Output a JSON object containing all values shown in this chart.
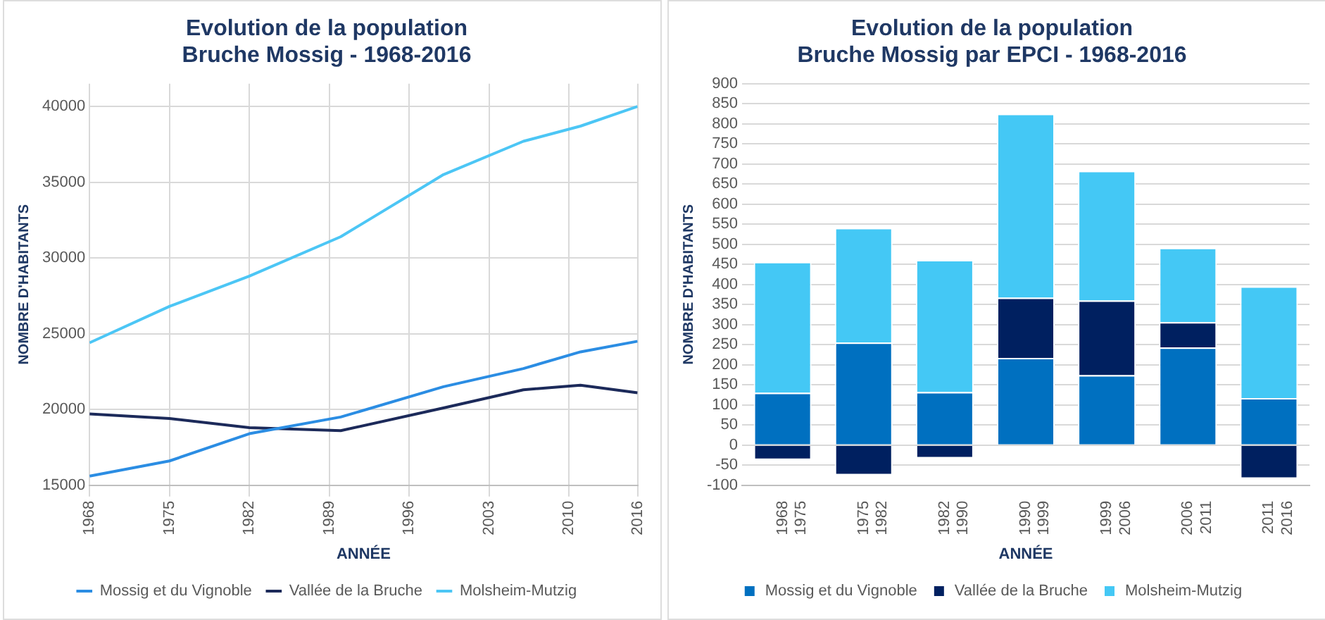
{
  "chart_data": [
    {
      "type": "line",
      "title": "Evolution de la population\nBruche Mossig - 1968-2016",
      "xlabel": "ANNÉE",
      "ylabel": "NOMBRE D'HABITANTS",
      "x": [
        1968,
        1975,
        1982,
        1990,
        1999,
        2006,
        2011,
        2016
      ],
      "series": [
        {
          "name": "Mossig et du Vignoble",
          "color": "#2b8de3",
          "values": [
            15600,
            16600,
            18400,
            19500,
            21500,
            22700,
            23800,
            24500
          ]
        },
        {
          "name": "Vallée de la Bruche",
          "color": "#1c2a5a",
          "values": [
            19700,
            19400,
            18800,
            18600,
            20100,
            21300,
            21600,
            21100
          ]
        },
        {
          "name": "Molsheim-Mutzig",
          "color": "#4cc6f5",
          "values": [
            24400,
            26800,
            28800,
            31400,
            35500,
            37700,
            38700,
            40000
          ]
        }
      ],
      "xlim": [
        1968,
        2016
      ],
      "xticks": [
        1968,
        1975,
        1982,
        1989,
        1996,
        2003,
        2010,
        2016
      ],
      "ylim": [
        15000,
        41500
      ],
      "yticks": [
        15000,
        20000,
        25000,
        30000,
        35000,
        40000
      ],
      "grid": true,
      "legend": "bottom",
      "marker": "none",
      "line_style": "solid"
    },
    {
      "type": "bar",
      "stacked": true,
      "title": "Evolution de la population\nBruche Mossig par EPCI - 1968-2016",
      "xlabel": "ANNÉE",
      "ylabel": "NOMBRE D'HABITANTS",
      "categories": [
        "1968\n1975",
        "1975\n1982",
        "1982\n1990",
        "1990\n1999",
        "1999\n2006",
        "2006\n2011",
        "2011\n2016"
      ],
      "series": [
        {
          "name": "Mossig et du Vignoble",
          "color": "#0070c0",
          "values": [
            130,
            255,
            132,
            217,
            174,
            243,
            117
          ]
        },
        {
          "name": "Vallée de la Bruche",
          "color": "#002060",
          "values": [
            -37,
            -75,
            -33,
            150,
            186,
            63,
            -84
          ]
        },
        {
          "name": "Molsheim-Mutzig",
          "color": "#44c8f5",
          "values": [
            326,
            286,
            329,
            458,
            323,
            185,
            278
          ]
        }
      ],
      "ylim": [
        -100,
        900
      ],
      "yticks": [
        -100,
        -50,
        0,
        50,
        100,
        150,
        200,
        250,
        300,
        350,
        400,
        450,
        500,
        550,
        600,
        650,
        700,
        750,
        800,
        850,
        900
      ],
      "grid": "y",
      "legend": "bottom"
    }
  ]
}
